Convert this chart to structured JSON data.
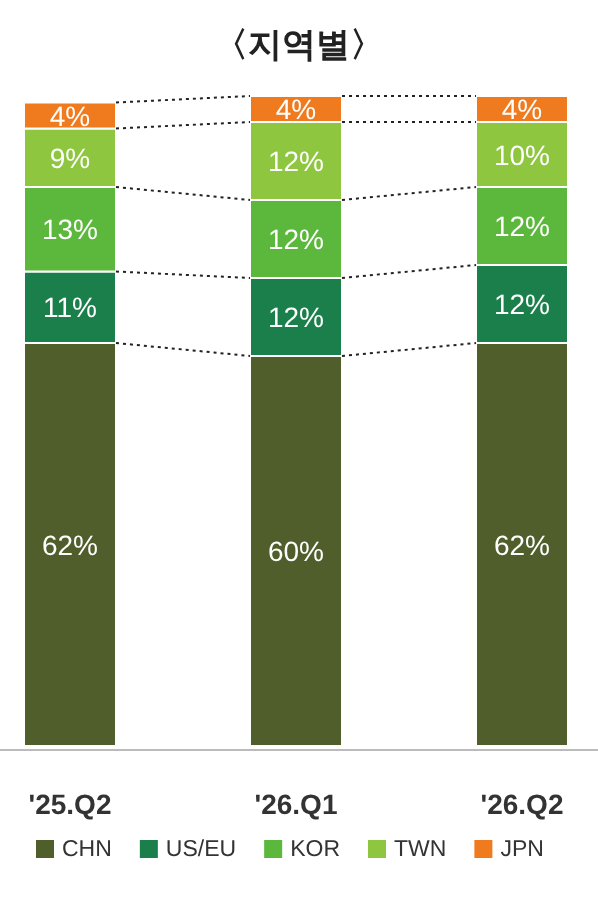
{
  "chart_data": {
    "type": "bar",
    "title": "〈지역별〉",
    "stacked": true,
    "legend": "bottom",
    "categories": [
      "'25.Q2",
      "'26.Q1",
      "'26.Q2"
    ],
    "series": [
      {
        "name": "CHN",
        "color": "#4f5e2a",
        "values": [
          62,
          60,
          62
        ],
        "value_labels": [
          "62%",
          "60%",
          "62%"
        ]
      },
      {
        "name": "US/EU",
        "color": "#1b7f4c",
        "values": [
          11,
          12,
          12
        ],
        "value_labels": [
          "11%",
          "12%",
          "12%"
        ]
      },
      {
        "name": "KOR",
        "color": "#5cb83c",
        "values": [
          13,
          12,
          12
        ],
        "value_labels": [
          "13%",
          "12%",
          "12%"
        ]
      },
      {
        "name": "TWN",
        "color": "#8ec63f",
        "values": [
          9,
          12,
          10
        ],
        "value_labels": [
          "9%",
          "12%",
          "10%"
        ]
      },
      {
        "name": "JPN",
        "color": "#f07a1e",
        "values": [
          4,
          4,
          4
        ],
        "value_labels": [
          "4%",
          "4%",
          "4%"
        ]
      }
    ]
  }
}
